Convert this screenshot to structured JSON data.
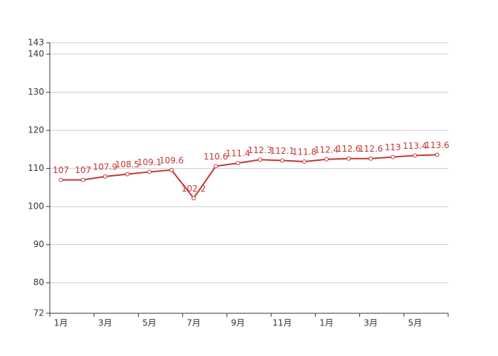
{
  "chart_data": {
    "type": "line",
    "categories": [
      "1月",
      null,
      "3月",
      null,
      "5月",
      null,
      "7月",
      null,
      "9月",
      null,
      "11月",
      null,
      "1月",
      null,
      "3月",
      null,
      "5月",
      null
    ],
    "series": [
      {
        "name": null,
        "color": "#c23531",
        "values": [
          107,
          107,
          107.9,
          108.5,
          109.1,
          109.6,
          102.2,
          110.6,
          111.4,
          112.3,
          112.1,
          111.8,
          112.4,
          112.6,
          112.6,
          113,
          113.4,
          113.6
        ]
      }
    ],
    "ylim": [
      72,
      143
    ],
    "yticks": [
      72,
      80,
      90,
      100,
      110,
      120,
      130,
      140,
      143
    ],
    "grid": true
  }
}
